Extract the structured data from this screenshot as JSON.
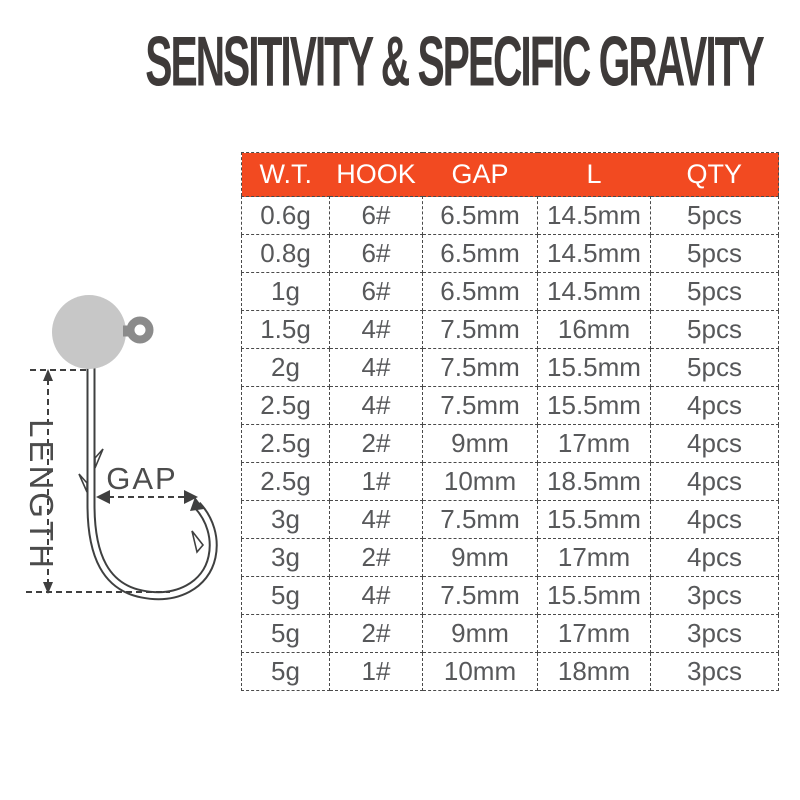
{
  "title": "SENSITIVITY & SPECIFIC GRAVITY",
  "diagram": {
    "length_label": "LENGTH",
    "gap_label": "GAP",
    "ball_color": "#c7c7c7",
    "ring_color": "#8b8b8b",
    "wire_color": "#3f4040",
    "dimension_line_color": "#3f3f3f"
  },
  "chart_data": {
    "type": "table",
    "title": "SENSITIVITY & SPECIFIC GRAVITY",
    "header_bg": "#f24a21",
    "header_text_color": "#ffffff",
    "body_text_color": "#57585a",
    "columns": [
      "W.T.",
      "HOOK",
      "GAP",
      "L",
      "QTY"
    ],
    "rows": [
      [
        "0.6g",
        "6#",
        "6.5mm",
        "14.5mm",
        "5pcs"
      ],
      [
        "0.8g",
        "6#",
        "6.5mm",
        "14.5mm",
        "5pcs"
      ],
      [
        "1g",
        "6#",
        "6.5mm",
        "14.5mm",
        "5pcs"
      ],
      [
        "1.5g",
        "4#",
        "7.5mm",
        "16mm",
        "5pcs"
      ],
      [
        "2g",
        "4#",
        "7.5mm",
        "15.5mm",
        "5pcs"
      ],
      [
        "2.5g",
        "4#",
        "7.5mm",
        "15.5mm",
        "4pcs"
      ],
      [
        "2.5g",
        "2#",
        "9mm",
        "17mm",
        "4pcs"
      ],
      [
        "2.5g",
        "1#",
        "10mm",
        "18.5mm",
        "4pcs"
      ],
      [
        "3g",
        "4#",
        "7.5mm",
        "15.5mm",
        "4pcs"
      ],
      [
        "3g",
        "2#",
        "9mm",
        "17mm",
        "4pcs"
      ],
      [
        "5g",
        "4#",
        "7.5mm",
        "15.5mm",
        "3pcs"
      ],
      [
        "5g",
        "2#",
        "9mm",
        "17mm",
        "3pcs"
      ],
      [
        "5g",
        "1#",
        "10mm",
        "18mm",
        "3pcs"
      ]
    ]
  }
}
